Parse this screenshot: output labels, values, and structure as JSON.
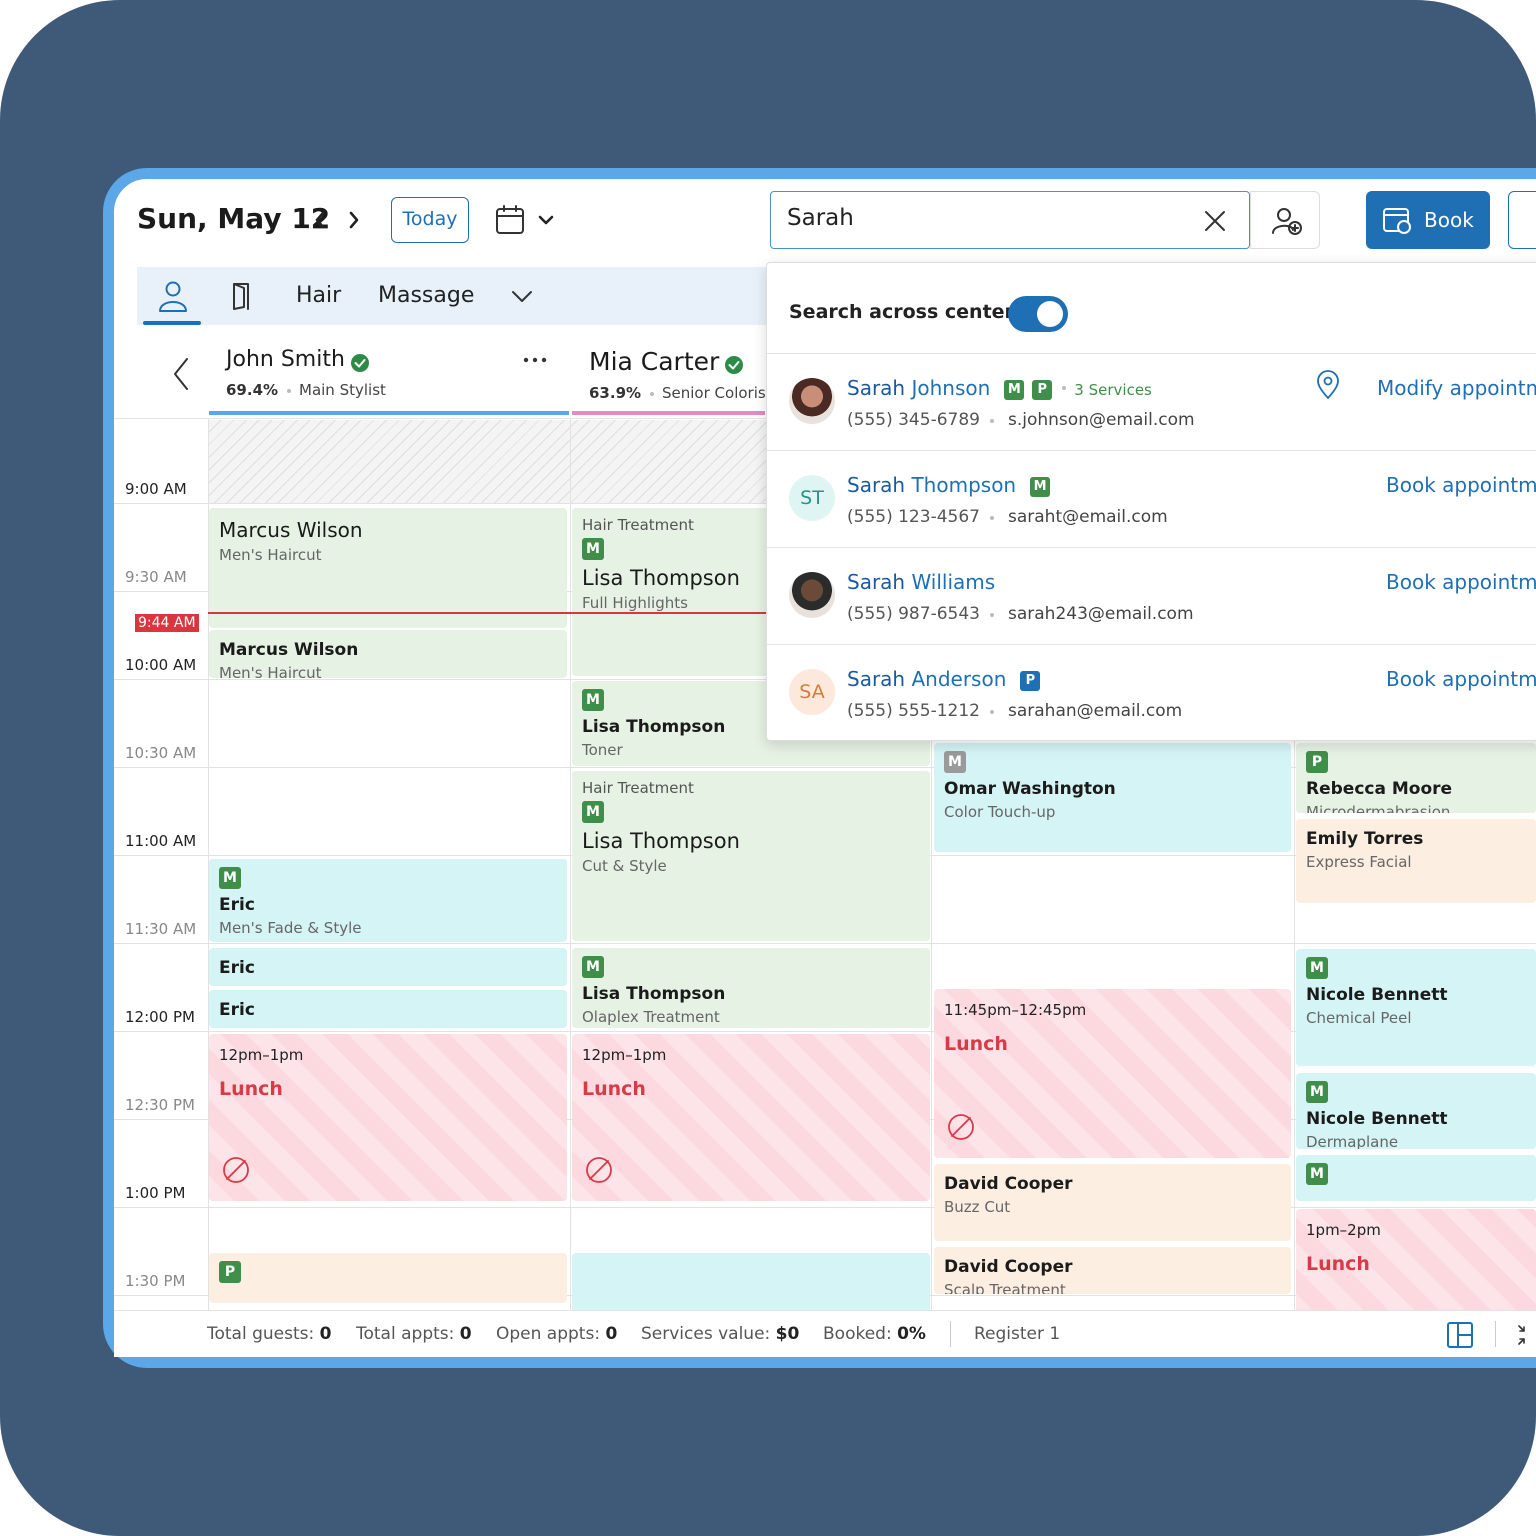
{
  "header": {
    "date": "Sun, May 12",
    "today": "Today",
    "search_value": "Sarah",
    "book": "Book"
  },
  "tabs": [
    "Hair",
    "Massage"
  ],
  "staff": [
    {
      "name": "John Smith",
      "utilization": "69.4%",
      "role": "Main Stylist"
    },
    {
      "name": "Mia Carter",
      "utilization": "63.9%",
      "role": "Senior Colorist"
    }
  ],
  "times": [
    "9:00 AM",
    "9:30 AM",
    "10:00 AM",
    "10:30 AM",
    "11:00 AM",
    "11:30 AM",
    "12:00 PM",
    "12:30 PM",
    "1:00 PM",
    "1:30 PM"
  ],
  "current_time": "9:44 AM",
  "appointments": [
    {
      "name": "Marcus Wilson",
      "service": "Men's Haircut"
    },
    {
      "name": "Marcus Wilson",
      "service": "Men's Haircut"
    },
    {
      "title": "Hair Treatment",
      "badges": [
        "M"
      ],
      "name": "Lisa Thompson",
      "service": "Full Highlights"
    },
    {
      "badges": [
        "M"
      ],
      "name": "Lisa Thompson",
      "service": "Toner"
    },
    {
      "title": "Hair Treatment",
      "badges": [
        "M"
      ],
      "name": "Lisa Thompson",
      "service": "Cut & Style"
    },
    {
      "badges": [
        "M"
      ],
      "name": "Lisa Thompson",
      "service": "Olaplex Treatment"
    },
    {
      "badges": [
        "M"
      ],
      "name": "Eric",
      "service": "Men's Fade & Style"
    },
    {
      "name": "Eric"
    },
    {
      "name": "Eric"
    },
    {
      "time": "12pm–1pm",
      "label": "Lunch"
    },
    {
      "time": "12pm–1pm",
      "label": "Lunch"
    },
    {
      "badges": [
        "M"
      ],
      "name": "Omar Washington",
      "service": "Color Touch-up"
    },
    {
      "time": "11:45pm–12:45pm",
      "label": "Lunch"
    },
    {
      "name": "David Cooper",
      "service": "Buzz Cut"
    },
    {
      "name": "David Cooper",
      "service": "Scalp Treatment"
    },
    {
      "badges": [
        "P"
      ],
      "name": "Rebecca Moore",
      "service": "Microdermabrasion"
    },
    {
      "name": "Emily Torres",
      "service": "Express Facial"
    },
    {
      "badges": [
        "M"
      ],
      "name": "Nicole Bennett",
      "service": "Chemical Peel"
    },
    {
      "badges": [
        "M"
      ],
      "name": "Nicole Bennett",
      "service": "Dermaplane"
    },
    {
      "badges": [
        "M"
      ]
    },
    {
      "time": "1pm–2pm",
      "label": "Lunch"
    },
    {
      "badges": [
        "P"
      ]
    }
  ],
  "search": {
    "toggle_label": "Search across centers",
    "results": [
      {
        "first": "Sarah",
        "last": "Johnson",
        "badges": [
          "M",
          "P"
        ],
        "services": "3 Services",
        "phone": "(555) 345-6789",
        "email": "s.johnson@email.com",
        "action": "Modify appointment"
      },
      {
        "first": "Sarah",
        "last": "Thompson",
        "initials": "ST",
        "badges": [
          "M"
        ],
        "phone": "(555) 123-4567",
        "email": "saraht@email.com",
        "action": "Book appointment"
      },
      {
        "first": "Sarah",
        "last": "Williams",
        "phone": "(555) 987-6543",
        "email": "sarah243@email.com",
        "action": "Book appointment"
      },
      {
        "first": "Sarah",
        "last": "Anderson",
        "initials": "SA",
        "badges": [
          "P"
        ],
        "phone": "(555) 555-1212",
        "email": "sarahan@email.com",
        "action": "Book appointment"
      }
    ]
  },
  "footer": {
    "stats": [
      {
        "label": "Total guests:",
        "value": 0
      },
      {
        "label": "Total appts:",
        "value": 0
      },
      {
        "label": "Open appts:",
        "value": 0
      },
      {
        "label": "Services value:",
        "value": "$0"
      },
      {
        "label": "Booked:",
        "value": "0%"
      }
    ],
    "register": "Register 1"
  }
}
